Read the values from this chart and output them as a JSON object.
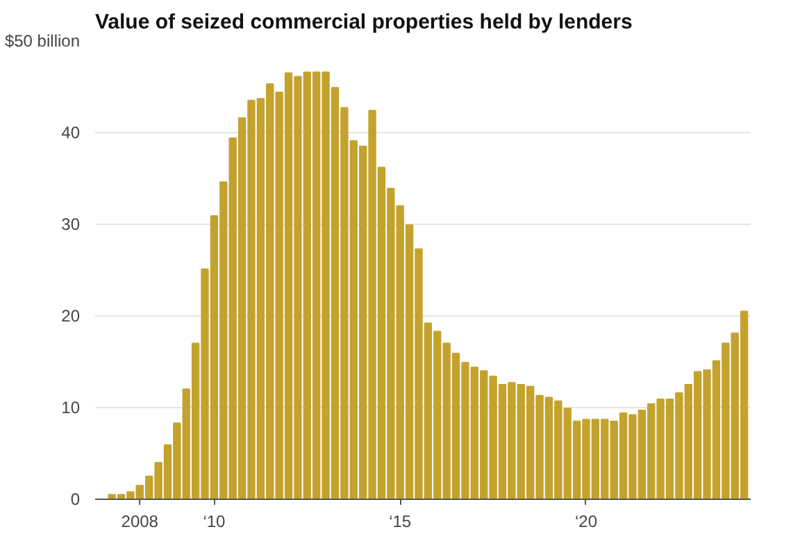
{
  "chart_data": {
    "type": "bar",
    "title": "Value of seized commercial properties held by lenders",
    "categories": [
      null,
      null,
      null,
      "2008",
      null,
      null,
      null,
      null,
      null,
      null,
      null,
      "‘10",
      null,
      null,
      null,
      null,
      null,
      null,
      null,
      null,
      null,
      null,
      null,
      null,
      null,
      null,
      null,
      null,
      null,
      null,
      null,
      "‘15",
      null,
      null,
      null,
      null,
      null,
      null,
      null,
      null,
      null,
      null,
      null,
      null,
      null,
      null,
      null,
      null,
      null,
      null,
      null,
      "‘20",
      null,
      null,
      null,
      null,
      null,
      null,
      null,
      null,
      null,
      null,
      null,
      null,
      null,
      null,
      null,
      null,
      null
    ],
    "values": [
      0.5,
      0.5,
      0.8,
      1.5,
      2.5,
      4.0,
      5.9,
      8.3,
      12.0,
      17.0,
      25.1,
      30.9,
      34.6,
      39.4,
      41.6,
      43.5,
      43.7,
      45.3,
      44.4,
      46.5,
      46.1,
      46.6,
      46.6,
      46.6,
      44.9,
      42.7,
      39.1,
      38.5,
      42.4,
      36.2,
      33.9,
      32.0,
      29.9,
      27.3,
      19.2,
      18.3,
      17.0,
      15.9,
      14.9,
      14.4,
      14.0,
      13.4,
      12.5,
      12.7,
      12.5,
      12.3,
      11.3,
      11.1,
      10.7,
      9.9,
      8.5,
      8.7,
      8.7,
      8.7,
      8.5,
      9.4,
      9.2,
      9.7,
      10.4,
      10.9,
      10.9,
      11.6,
      12.5,
      13.9,
      14.1,
      15.1,
      17.0,
      18.1,
      20.5
    ],
    "color": "#c4a22e",
    "ylim": [
      0,
      50
    ],
    "yticks": [
      0,
      10,
      20,
      30,
      40,
      {
        "value": 50,
        "label": "$50 billion"
      }
    ],
    "grid": "y"
  }
}
